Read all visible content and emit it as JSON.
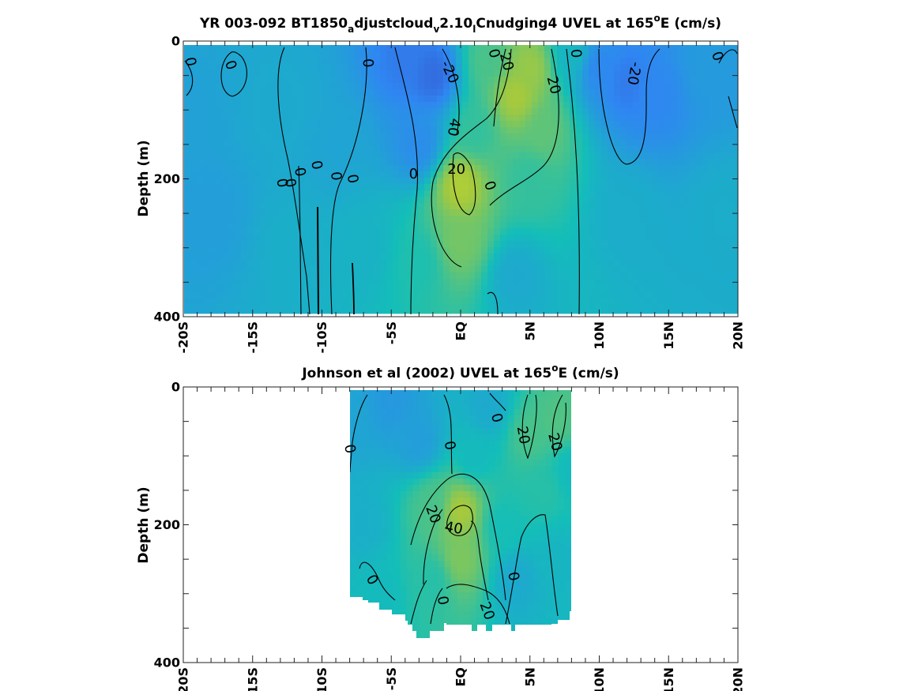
{
  "figure": {
    "background": "#ffffff"
  },
  "colormap": [
    "#3e26a8",
    "#2f86f2",
    "#13beb8",
    "#a5c93d",
    "#f9fb15"
  ],
  "chart_data": [
    {
      "type": "heatmap",
      "title": {
        "pre": "YR 003-092 BT1850",
        "sub1": "a",
        "mid1": "djustcloud",
        "sub2": "v",
        "mid2": "2.10",
        "sub3": "l",
        "mid3": "Cnudging4 UVEL at 165",
        "sup": "o",
        "post": "E (cm/s)"
      },
      "ylabel": "Depth (m)",
      "xlim": [
        -20,
        20
      ],
      "ylim": [
        0,
        400
      ],
      "y_reversed": true,
      "xtick_labels": [
        "-20S",
        "-15S",
        "-10S",
        "-5S",
        "EQ",
        "5N",
        "10N",
        "15N",
        "20N"
      ],
      "ytick_labels": [
        "0",
        "200",
        "400"
      ],
      "field_points": [
        {
          "lat": -20,
          "depth": 100,
          "u": -10
        },
        {
          "lat": -18,
          "depth": 250,
          "u": -12
        },
        {
          "lat": -13,
          "depth": 100,
          "u": -5
        },
        {
          "lat": -12,
          "depth": 300,
          "u": -2
        },
        {
          "lat": -9,
          "depth": 150,
          "u": -8
        },
        {
          "lat": -7,
          "depth": 300,
          "u": 0
        },
        {
          "lat": -4,
          "depth": 30,
          "u": -30
        },
        {
          "lat": -2,
          "depth": 50,
          "u": -35
        },
        {
          "lat": -3,
          "depth": 150,
          "u": -22
        },
        {
          "lat": -3,
          "depth": 320,
          "u": 10
        },
        {
          "lat": 0,
          "depth": 210,
          "u": 45
        },
        {
          "lat": 0,
          "depth": 290,
          "u": 30
        },
        {
          "lat": 1,
          "depth": 130,
          "u": 15
        },
        {
          "lat": 2,
          "depth": 30,
          "u": 20
        },
        {
          "lat": 4,
          "depth": 80,
          "u": 42
        },
        {
          "lat": 5,
          "depth": 40,
          "u": 38
        },
        {
          "lat": 5,
          "depth": 200,
          "u": 15
        },
        {
          "lat": 6,
          "depth": 130,
          "u": 25
        },
        {
          "lat": 4,
          "depth": 340,
          "u": -5
        },
        {
          "lat": 8,
          "depth": 20,
          "u": 2
        },
        {
          "lat": 10,
          "depth": 40,
          "u": -25
        },
        {
          "lat": 12,
          "depth": 60,
          "u": -30
        },
        {
          "lat": 14,
          "depth": 80,
          "u": -25
        },
        {
          "lat": 12,
          "depth": 250,
          "u": -3
        },
        {
          "lat": 18,
          "depth": 40,
          "u": -14
        },
        {
          "lat": 19,
          "depth": 250,
          "u": -3
        }
      ],
      "contour_labels": [
        {
          "text": "0",
          "lat": -19.5,
          "depth": 30,
          "rot": 80
        },
        {
          "text": "0",
          "lat": -16.6,
          "depth": 35,
          "rot": 70
        },
        {
          "text": "0",
          "lat": -6.7,
          "depth": 32,
          "rot": 85
        },
        {
          "text": "-20",
          "lat": -0.8,
          "depth": 45,
          "rot": 65
        },
        {
          "text": "0",
          "lat": 2.4,
          "depth": 18,
          "rot": 75
        },
        {
          "text": "20",
          "lat": 3.3,
          "depth": 30,
          "rot": 75
        },
        {
          "text": "0",
          "lat": 8.3,
          "depth": 18,
          "rot": 85
        },
        {
          "text": "-20",
          "lat": 12.5,
          "depth": 47,
          "rot": 100
        },
        {
          "text": "0",
          "lat": 18.5,
          "depth": 22,
          "rot": 70
        },
        {
          "text": "20",
          "lat": 6.7,
          "depth": 64,
          "rot": 75
        },
        {
          "text": "40",
          "lat": -0.5,
          "depth": 125,
          "rot": 100
        },
        {
          "text": "20",
          "lat": -0.3,
          "depth": 186,
          "rot": 0
        },
        {
          "text": "0",
          "lat": -3.4,
          "depth": 193,
          "rot": 0
        },
        {
          "text": "0",
          "lat": 2.1,
          "depth": 210,
          "rot": 70
        },
        {
          "text": "0",
          "lat": -9.0,
          "depth": 196,
          "rot": 85
        },
        {
          "text": "0",
          "lat": -10.4,
          "depth": 180,
          "rot": 80
        },
        {
          "text": "0",
          "lat": -11.6,
          "depth": 190,
          "rot": 80
        },
        {
          "text": "0",
          "lat": -12.3,
          "depth": 206,
          "rot": 80
        },
        {
          "text": "0",
          "lat": -12.9,
          "depth": 206,
          "rot": 80
        },
        {
          "text": "0",
          "lat": -7.8,
          "depth": 200,
          "rot": 80
        }
      ]
    },
    {
      "type": "heatmap",
      "title": {
        "pre": "Johnson et al (2002) UVEL at 165",
        "sup": "o",
        "post": "E (cm/s)"
      },
      "ylabel": "Depth (m)",
      "xlim": [
        -20,
        20
      ],
      "ylim": [
        0,
        400
      ],
      "y_reversed": true,
      "data_lat_range": [
        -8,
        8
      ],
      "xtick_labels": [
        "-20S",
        "-15S",
        "-10S",
        "-5S",
        "EQ",
        "5N",
        "10N",
        "15N",
        "20N"
      ],
      "ytick_labels": [
        "0",
        "200",
        "400"
      ],
      "field_points": [
        {
          "lat": -8,
          "depth": 50,
          "u": -8
        },
        {
          "lat": -7,
          "depth": 200,
          "u": -2
        },
        {
          "lat": -6,
          "depth": 300,
          "u": 5
        },
        {
          "lat": -5,
          "depth": 20,
          "u": -15
        },
        {
          "lat": -3,
          "depth": 80,
          "u": -12
        },
        {
          "lat": -2,
          "depth": 170,
          "u": 20
        },
        {
          "lat": -2,
          "depth": 280,
          "u": 12
        },
        {
          "lat": 0,
          "depth": 180,
          "u": 42
        },
        {
          "lat": 0,
          "depth": 250,
          "u": 32
        },
        {
          "lat": 1,
          "depth": 100,
          "u": 5
        },
        {
          "lat": 2,
          "depth": 30,
          "u": -5
        },
        {
          "lat": 3,
          "depth": 200,
          "u": 8
        },
        {
          "lat": 4,
          "depth": 280,
          "u": -5
        },
        {
          "lat": 5,
          "depth": 70,
          "u": 20
        },
        {
          "lat": 6,
          "depth": 150,
          "u": 12
        },
        {
          "lat": 7,
          "depth": 50,
          "u": 22
        },
        {
          "lat": 7,
          "depth": 250,
          "u": 2
        },
        {
          "lat": 8,
          "depth": 120,
          "u": 5
        }
      ],
      "contour_labels": [
        {
          "text": "0",
          "lat": -8.0,
          "depth": 90,
          "rot": 80
        },
        {
          "text": "0",
          "lat": -0.8,
          "depth": 85,
          "rot": 80
        },
        {
          "text": "0",
          "lat": 2.6,
          "depth": 45,
          "rot": 75
        },
        {
          "text": "20",
          "lat": 4.5,
          "depth": 70,
          "rot": 80
        },
        {
          "text": "20",
          "lat": 6.8,
          "depth": 80,
          "rot": 75
        },
        {
          "text": "20",
          "lat": -2.0,
          "depth": 185,
          "rot": 70
        },
        {
          "text": "40",
          "lat": -0.5,
          "depth": 205,
          "rot": 10
        },
        {
          "text": "0",
          "lat": -6.4,
          "depth": 280,
          "rot": 60
        },
        {
          "text": "0",
          "lat": 3.8,
          "depth": 275,
          "rot": 80
        },
        {
          "text": "0",
          "lat": -1.3,
          "depth": 310,
          "rot": 80
        },
        {
          "text": "20",
          "lat": 1.9,
          "depth": 325,
          "rot": 70
        }
      ]
    }
  ]
}
